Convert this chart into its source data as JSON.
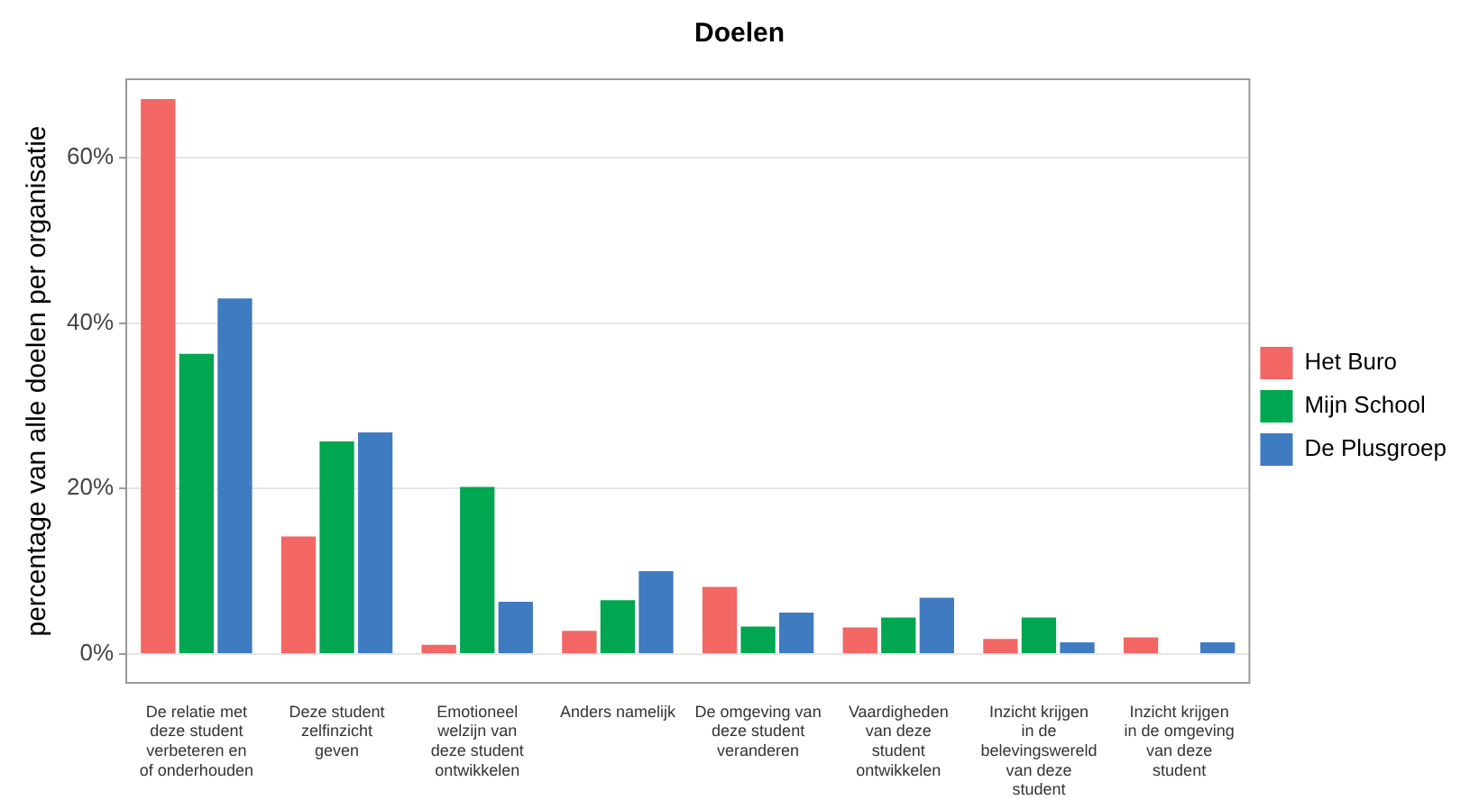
{
  "chart_data": {
    "type": "bar",
    "title": "Doelen",
    "ylabel": "percentage van alle doelen per organisatie",
    "categories": [
      "De relatie met deze student verbeteren en of onderhouden",
      "Deze student zelfinzicht geven",
      "Emotioneel welzijn van deze student ontwikkelen",
      "Anders namelijk",
      "De omgeving van deze student veranderen",
      "Vaardigheden van deze student ontwikkelen",
      "Inzicht krijgen in de belevingswereld van deze student",
      "Inzicht krijgen in de omgeving van deze student"
    ],
    "series": [
      {
        "name": "Het Buro",
        "color": "#f26664",
        "values": [
          67.1,
          14.2,
          1.1,
          2.8,
          8.1,
          3.2,
          1.8,
          2.0
        ]
      },
      {
        "name": "Mijn School",
        "color": "#00a650",
        "values": [
          36.3,
          25.7,
          20.2,
          6.5,
          3.3,
          4.4,
          4.4,
          null
        ]
      },
      {
        "name": "De Plusgroep",
        "color": "#3f7bc1",
        "values": [
          43.0,
          26.8,
          6.3,
          10.0,
          5.0,
          6.8,
          1.4,
          1.4
        ]
      }
    ],
    "ylim": [
      -3.5,
      69.5
    ],
    "yticks": [
      {
        "value": 0,
        "label": "0%"
      },
      {
        "value": 20,
        "label": "20%"
      },
      {
        "value": 40,
        "label": "40%"
      },
      {
        "value": 60,
        "label": "60%"
      }
    ],
    "grid": "y",
    "legend": "right"
  }
}
